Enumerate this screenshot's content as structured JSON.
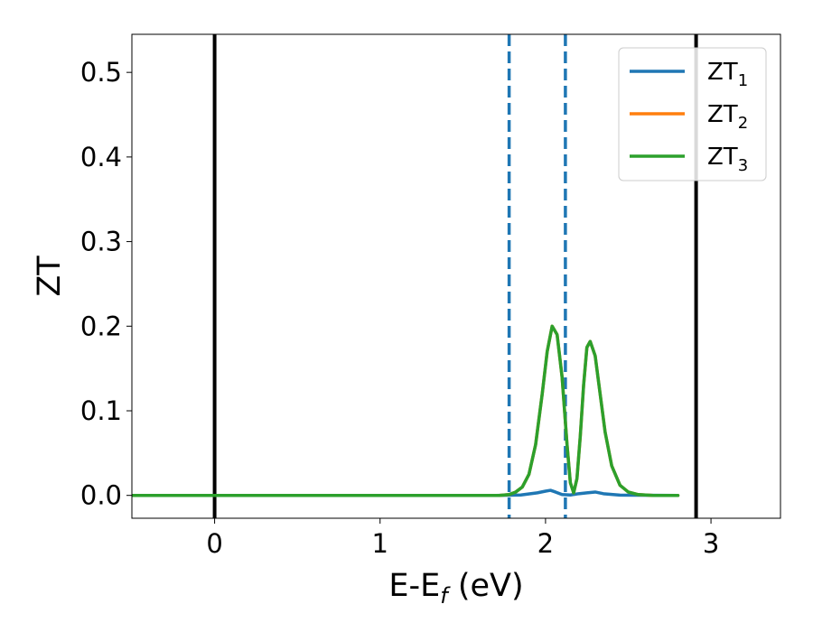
{
  "chart_data": {
    "type": "line",
    "title": "",
    "xlabel": {
      "main": "E-E",
      "sub": "f",
      "suffix": " (eV)"
    },
    "ylabel": "ZT",
    "xlim": [
      -0.5,
      3.42
    ],
    "ylim": [
      -0.027,
      0.545
    ],
    "xticks": [
      {
        "value": 0,
        "label": "0"
      },
      {
        "value": 1,
        "label": "1"
      },
      {
        "value": 2,
        "label": "2"
      },
      {
        "value": 3,
        "label": "3"
      }
    ],
    "yticks": [
      {
        "value": 0.0,
        "label": "0.0"
      },
      {
        "value": 0.1,
        "label": "0.1"
      },
      {
        "value": 0.2,
        "label": "0.2"
      },
      {
        "value": 0.3,
        "label": "0.3"
      },
      {
        "value": 0.4,
        "label": "0.4"
      },
      {
        "value": 0.5,
        "label": "0.5"
      }
    ],
    "vertical_lines": [
      {
        "x": 0.0,
        "color": "#000000",
        "style": "solid"
      },
      {
        "x": 2.91,
        "color": "#000000",
        "style": "solid"
      },
      {
        "x": 1.78,
        "color": "#1f77b4",
        "style": "dashed"
      },
      {
        "x": 2.12,
        "color": "#1f77b4",
        "style": "dashed"
      }
    ],
    "legend_position": "top-right",
    "series": [
      {
        "name": "ZT",
        "sub": "1",
        "color": "#1f77b4",
        "x": [
          -0.5,
          1.7,
          1.85,
          1.95,
          2.0,
          2.03,
          2.06,
          2.1,
          2.15,
          2.2,
          2.25,
          2.3,
          2.35,
          2.45,
          2.8
        ],
        "y": [
          0,
          0,
          0.0005,
          0.003,
          0.005,
          0.006,
          0.004,
          0.001,
          0.0005,
          0.002,
          0.003,
          0.004,
          0.002,
          0.0003,
          0
        ]
      },
      {
        "name": "ZT",
        "sub": "2",
        "color": "#ff7f0e",
        "x": [
          -0.5,
          1.72,
          1.78,
          1.82,
          1.86,
          1.9,
          1.94,
          1.98,
          2.01,
          2.04,
          2.07,
          2.1,
          2.13,
          2.15,
          2.17,
          2.19,
          2.21,
          2.23,
          2.25,
          2.27,
          2.3,
          2.33,
          2.36,
          2.4,
          2.45,
          2.5,
          2.56,
          2.65,
          2.8
        ],
        "y": [
          0,
          0,
          0.001,
          0.004,
          0.01,
          0.025,
          0.06,
          0.12,
          0.17,
          0.2,
          0.19,
          0.14,
          0.06,
          0.015,
          0.003,
          0.02,
          0.07,
          0.13,
          0.175,
          0.182,
          0.165,
          0.12,
          0.075,
          0.035,
          0.012,
          0.004,
          0.001,
          0,
          0
        ]
      },
      {
        "name": "ZT",
        "sub": "3",
        "color": "#2ca02c",
        "x": [
          -0.5,
          1.72,
          1.78,
          1.82,
          1.86,
          1.9,
          1.94,
          1.98,
          2.01,
          2.04,
          2.07,
          2.1,
          2.13,
          2.15,
          2.17,
          2.19,
          2.21,
          2.23,
          2.25,
          2.27,
          2.3,
          2.33,
          2.36,
          2.4,
          2.45,
          2.5,
          2.56,
          2.65,
          2.8
        ],
        "y": [
          0,
          0,
          0.001,
          0.004,
          0.01,
          0.025,
          0.06,
          0.12,
          0.17,
          0.2,
          0.19,
          0.14,
          0.06,
          0.015,
          0.003,
          0.02,
          0.07,
          0.13,
          0.175,
          0.182,
          0.165,
          0.12,
          0.075,
          0.035,
          0.012,
          0.004,
          0.001,
          0,
          0
        ]
      }
    ]
  }
}
